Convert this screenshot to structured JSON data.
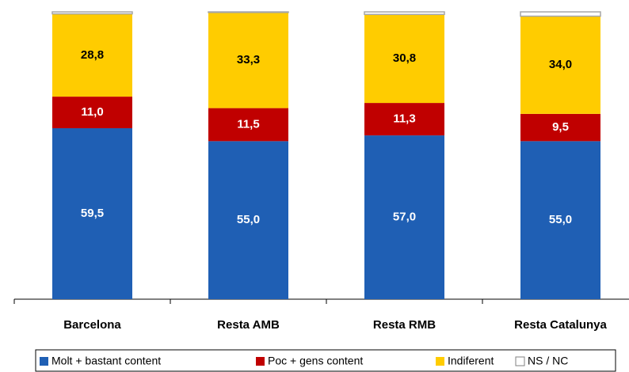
{
  "chart_data": {
    "type": "stacked_bar",
    "categories": [
      "Barcelona",
      "Resta AMB",
      "Resta RMB",
      "Resta Catalunya"
    ],
    "series": [
      {
        "name": "Molt + bastant content",
        "color": "#1f5fb4",
        "text_color": "#ffffff",
        "values": [
          59.5,
          55.0,
          57.0,
          55.0
        ],
        "value_labels": [
          "59,5",
          "55,0",
          "57,0",
          "55,0"
        ]
      },
      {
        "name": "Poc + gens content",
        "color": "#c00000",
        "text_color": "#ffffff",
        "values": [
          11.0,
          11.5,
          11.3,
          9.5
        ],
        "value_labels": [
          "11,0",
          "11,5",
          "11,3",
          "9,5"
        ]
      },
      {
        "name": "Indiferent",
        "color": "#ffcc00",
        "text_color": "#000000",
        "values": [
          28.8,
          33.3,
          30.8,
          34.0
        ],
        "value_labels": [
          "28,8",
          "33,3",
          "30,8",
          "34,0"
        ]
      },
      {
        "name": "NS / NC",
        "color": "#ffffff",
        "values": [
          0.7,
          0.2,
          0.9,
          1.5
        ]
      }
    ],
    "ylim": [
      0,
      100
    ],
    "legend": "bottom"
  }
}
